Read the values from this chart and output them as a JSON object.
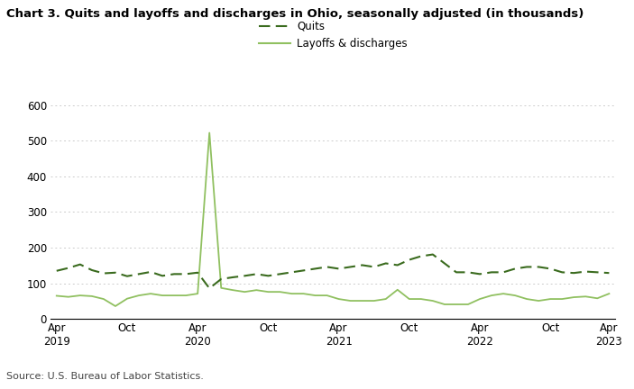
{
  "title": "Chart 3. Quits and layoffs and discharges in Ohio, seasonally adjusted (in thousands)",
  "source": "Source: U.S. Bureau of Labor Statistics.",
  "legend_quits": "Quits",
  "legend_layoffs": "Layoffs & discharges",
  "quits_color": "#3a6b1e",
  "layoffs_color": "#90c060",
  "ylim": [
    0,
    600
  ],
  "yticks": [
    0,
    100,
    200,
    300,
    400,
    500,
    600
  ],
  "background_color": "#ffffff",
  "quits": [
    135,
    143,
    153,
    137,
    128,
    130,
    120,
    126,
    132,
    121,
    126,
    126,
    130,
    86,
    112,
    117,
    121,
    126,
    121,
    126,
    131,
    136,
    141,
    146,
    141,
    146,
    151,
    146,
    156,
    151,
    166,
    176,
    181,
    156,
    131,
    131,
    126,
    131,
    131,
    141,
    146,
    146,
    141,
    131,
    129,
    133,
    131,
    129
  ],
  "layoffs": [
    65,
    62,
    66,
    64,
    56,
    36,
    57,
    66,
    71,
    66,
    66,
    66,
    71,
    522,
    87,
    81,
    76,
    81,
    76,
    76,
    71,
    71,
    66,
    66,
    56,
    51,
    51,
    51,
    56,
    82,
    56,
    56,
    51,
    41,
    41,
    41,
    56,
    66,
    71,
    66,
    56,
    51,
    56,
    56,
    61,
    63,
    58,
    71
  ],
  "n_points": 48,
  "x_tick_positions": [
    0,
    6,
    12,
    18,
    24,
    30,
    36,
    42,
    47
  ],
  "x_tick_labels": [
    "Apr\n2019",
    "Oct",
    "Apr\n2020",
    "Oct",
    "Apr\n2021",
    "Oct",
    "Apr\n2022",
    "Oct",
    "Apr\n2023"
  ]
}
